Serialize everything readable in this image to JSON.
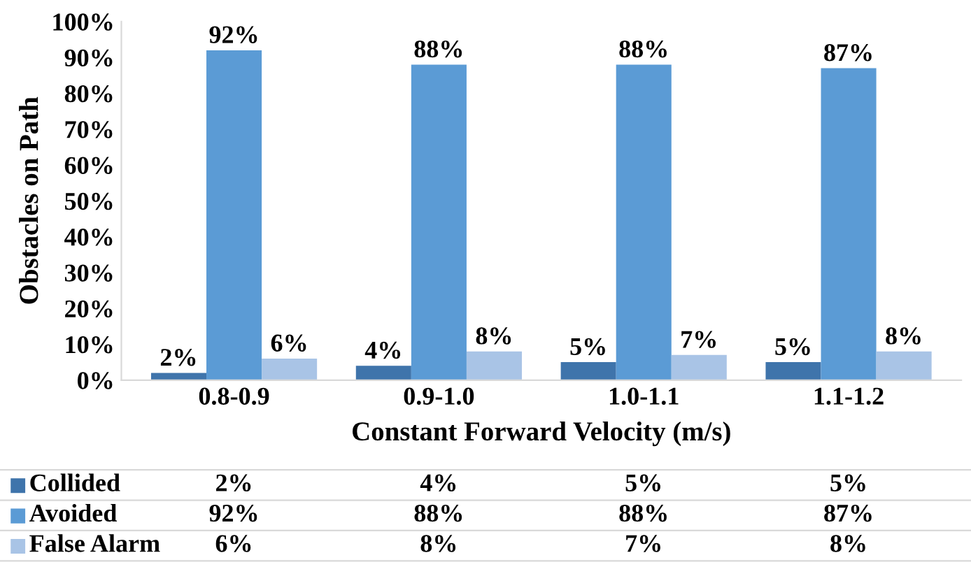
{
  "chart_data": {
    "type": "bar",
    "categories": [
      "0.8-0.9",
      "0.9-1.0",
      "1.0-1.1",
      "1.1-1.2"
    ],
    "xlabel": "Constant Forward Velocity (m/s)",
    "ylabel": "Obstacles on Path",
    "ylim": [
      0,
      100
    ],
    "yticks": [
      {
        "value": 0,
        "label": "0%"
      },
      {
        "value": 10,
        "label": "10%"
      },
      {
        "value": 20,
        "label": "20%"
      },
      {
        "value": 30,
        "label": "30%"
      },
      {
        "value": 40,
        "label": "40%"
      },
      {
        "value": 50,
        "label": "50%"
      },
      {
        "value": 60,
        "label": "60%"
      },
      {
        "value": 70,
        "label": "70%"
      },
      {
        "value": 80,
        "label": "80%"
      },
      {
        "value": 90,
        "label": "90%"
      },
      {
        "value": 100,
        "label": "100%"
      }
    ],
    "grid": false,
    "legend": "bottom",
    "series": [
      {
        "name": "Collided",
        "color": "#3f74ab",
        "values": [
          2,
          4,
          5,
          5
        ],
        "value_labels": [
          "2%",
          "4%",
          "5%",
          "5%"
        ]
      },
      {
        "name": "Avoided",
        "color": "#5b9bd5",
        "values": [
          92,
          88,
          88,
          87
        ],
        "value_labels": [
          "92%",
          "88%",
          "88%",
          "87%"
        ]
      },
      {
        "name": "False Alarm",
        "color": "#a9c4e6",
        "values": [
          6,
          8,
          7,
          8
        ],
        "value_labels": [
          "6%",
          "8%",
          "7%",
          "8%"
        ]
      }
    ]
  }
}
